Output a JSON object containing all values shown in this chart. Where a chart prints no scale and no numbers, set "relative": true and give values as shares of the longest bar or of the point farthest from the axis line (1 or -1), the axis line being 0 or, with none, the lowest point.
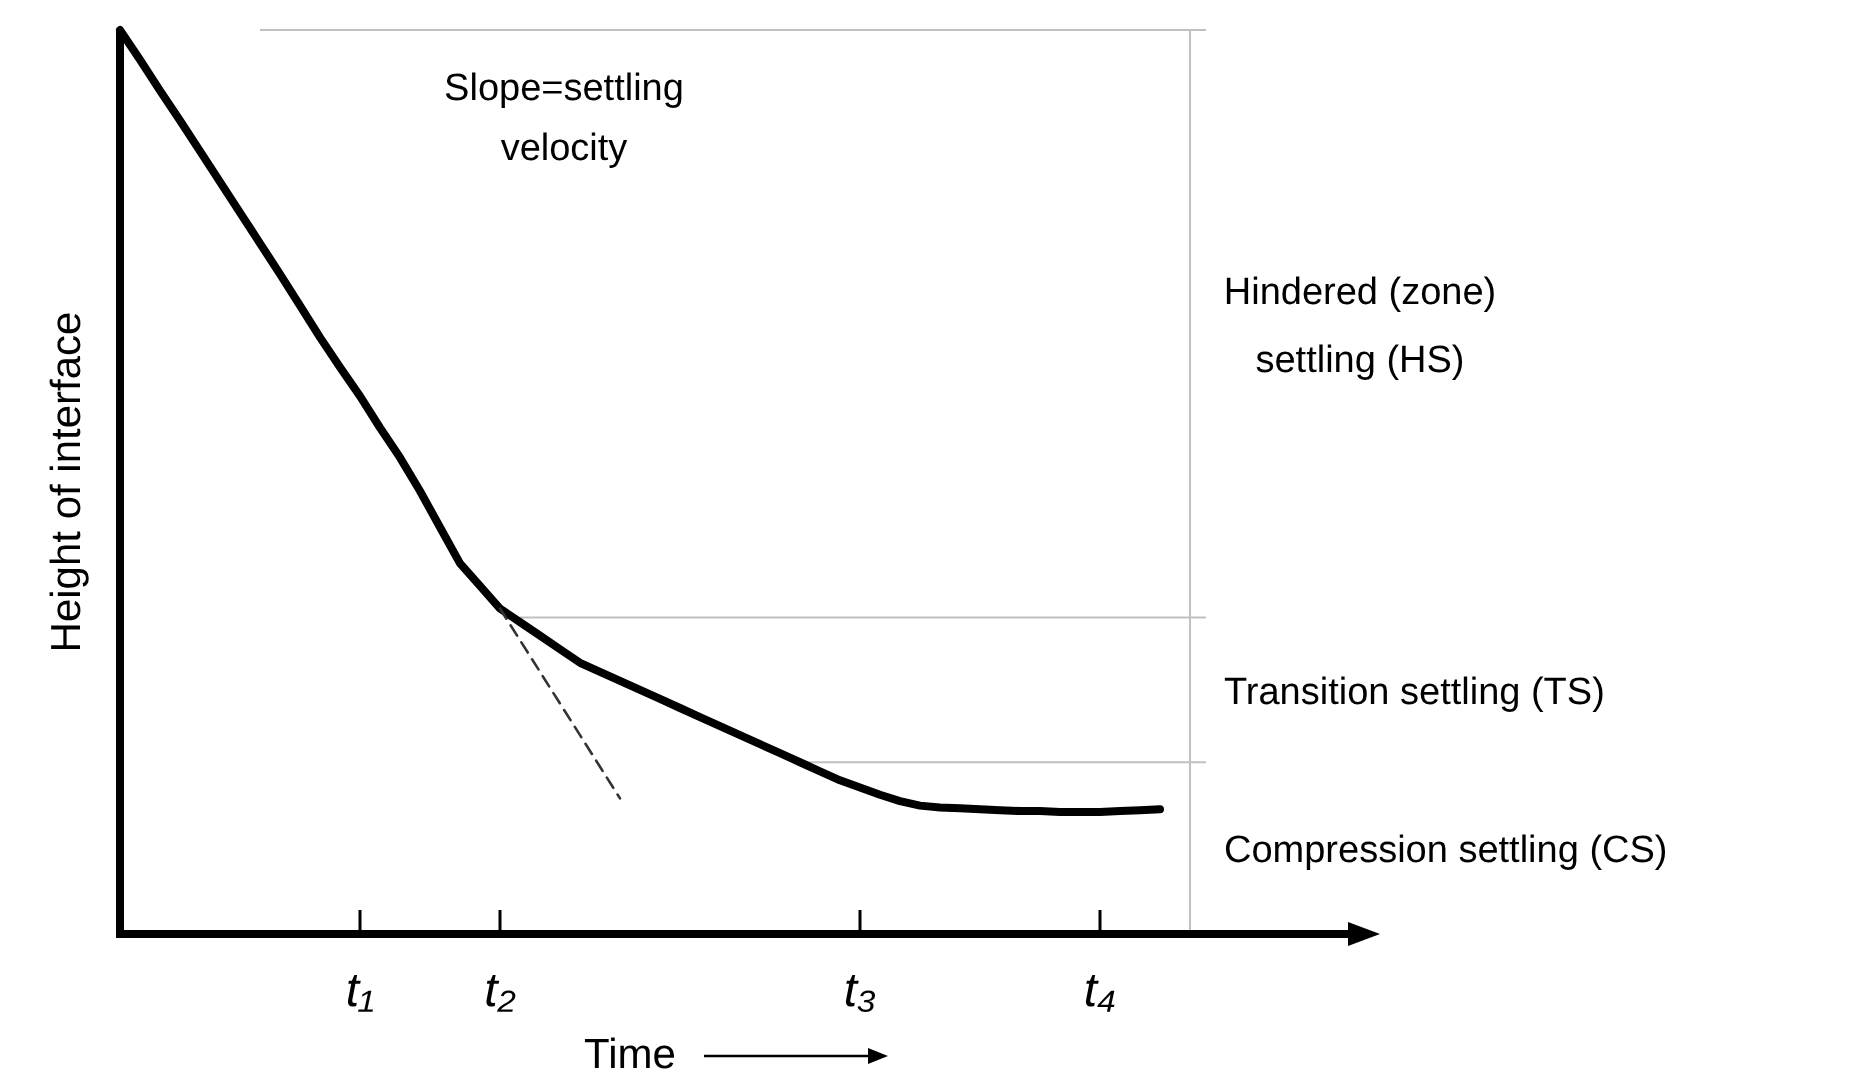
{
  "chart_data": {
    "type": "line",
    "relative": true,
    "xlabel": "Time",
    "ylabel": "Height of interface",
    "categories": [
      null,
      null,
      null,
      null,
      null,
      null,
      null,
      null,
      null,
      null,
      null,
      null,
      "t₁",
      null,
      null,
      null,
      null,
      null,
      null,
      "t₂",
      null,
      null,
      null,
      null,
      null,
      null,
      null,
      null,
      null,
      null,
      null,
      null,
      null,
      null,
      null,
      null,
      null,
      "t₃",
      null,
      null,
      null,
      null,
      null,
      null,
      null,
      null,
      null,
      null,
      null,
      "t₄",
      null,
      null,
      null,
      null,
      null,
      null,
      null,
      null,
      null,
      null,
      null,
      null,
      null,
      null
    ],
    "series": [
      {
        "color": "#000000",
        "line_style": "solid",
        "values": [
          1.0,
          0.967,
          0.933,
          0.9,
          0.866,
          0.832,
          0.798,
          0.764,
          0.73,
          0.695,
          0.66,
          0.627,
          0.595,
          0.56,
          0.527,
          0.49,
          0.45,
          0.41,
          0.385,
          0.36,
          0.345,
          0.33,
          0.315,
          0.3,
          0.29,
          0.28,
          0.27,
          0.26,
          0.25,
          0.24,
          0.23,
          0.22,
          0.21,
          0.2,
          0.19,
          0.18,
          0.17,
          0.162,
          0.154,
          0.147,
          0.142,
          0.14,
          0.139,
          0.138,
          0.137,
          0.136,
          0.136,
          0.135,
          0.135,
          0.135,
          0.136,
          0.137,
          0.138,
          null,
          null,
          null,
          null,
          null,
          null,
          null,
          null,
          null,
          null,
          null
        ]
      },
      {
        "color": "#333333",
        "line_style": "dashed",
        "values": [
          null,
          null,
          null,
          null,
          null,
          null,
          null,
          null,
          null,
          null,
          null,
          null,
          null,
          null,
          null,
          null,
          null,
          null,
          null,
          0.36,
          0.325,
          0.29,
          0.255,
          0.22,
          0.185,
          0.15,
          null,
          null,
          null,
          null,
          null,
          null,
          null,
          null,
          null,
          null,
          null,
          null,
          null,
          null,
          null,
          null,
          null,
          null,
          null,
          null,
          null,
          null,
          null,
          null,
          null,
          null,
          null,
          null,
          null,
          null,
          null,
          null,
          null,
          null,
          null,
          null,
          null,
          null
        ]
      }
    ],
    "ref_lines": [
      {
        "axis": "y",
        "value": 1.0,
        "color": "#c0c0c0"
      },
      {
        "axis": "y",
        "value": 0.35,
        "color": "#c0c0c0"
      },
      {
        "axis": "y",
        "value": 0.19,
        "color": "#c0c0c0"
      }
    ],
    "annotations": [
      "Slope=settling velocity",
      "Hindered (zone) settling (HS)",
      "Transition settling (TS)",
      "Compression settling (CS)"
    ]
  }
}
